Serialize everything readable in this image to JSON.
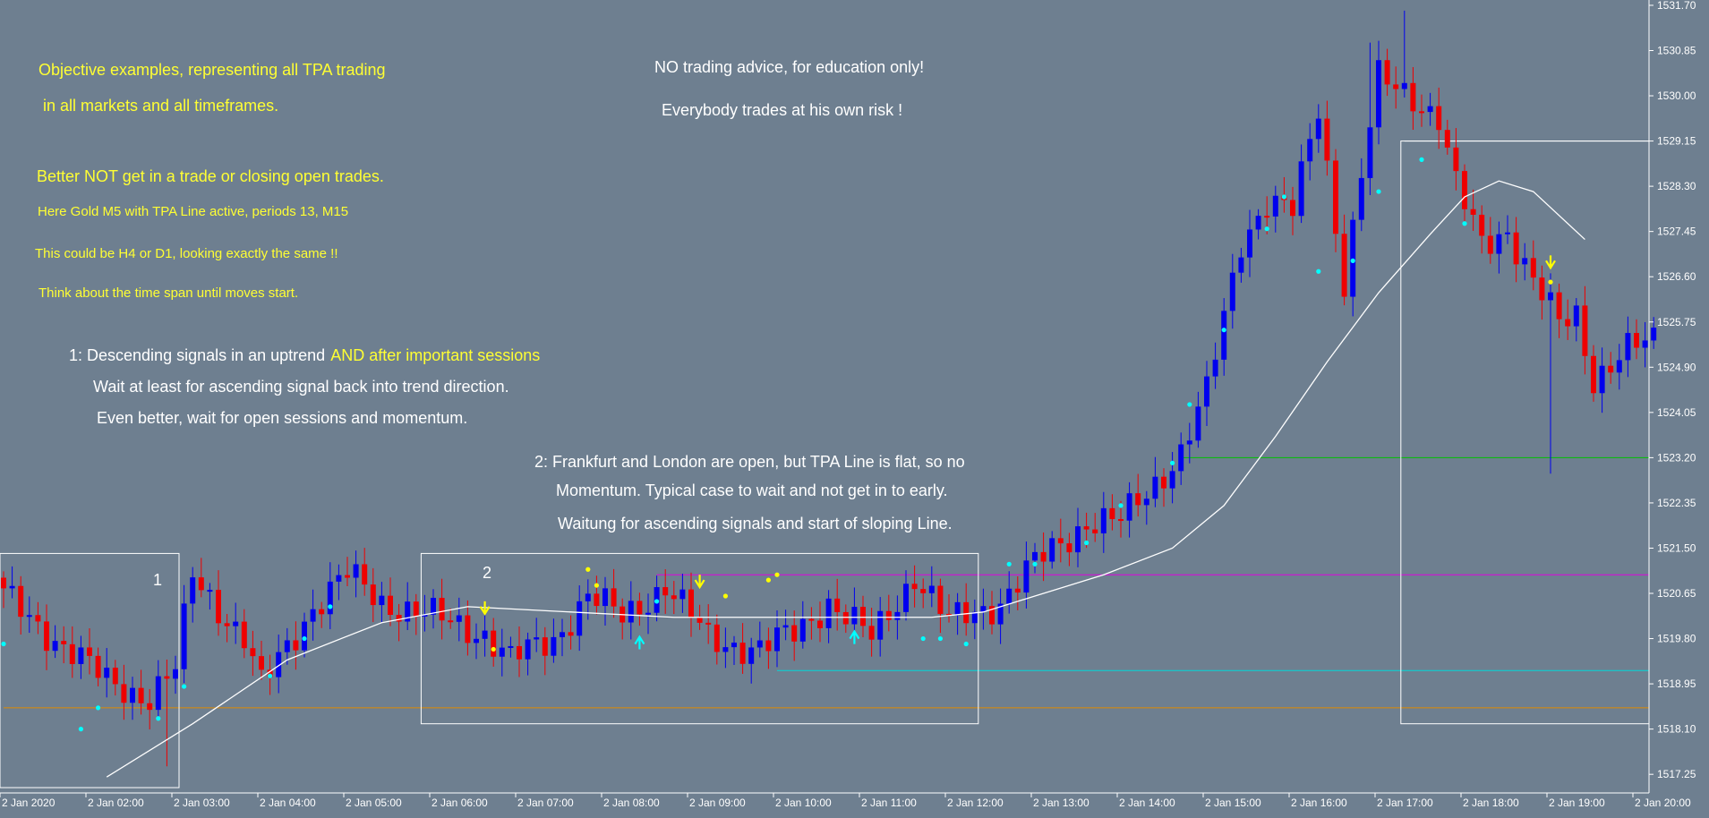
{
  "notes": {
    "yellow_1": "Objective examples, representing all TPA trading",
    "yellow_2": "in all markets and all timeframes.",
    "yellow_3": "Better NOT get in a trade or closing open trades.",
    "yellow_4": "Here Gold M5 with TPA Line active, periods 13, M15",
    "yellow_5": "This could be H4 or D1, looking exactly the same !!",
    "yellow_6": "Think about the time span until moves start.",
    "disclaimer_1": "NO trading advice, for education only!",
    "disclaimer_2": "Everybody trades at his own risk !",
    "case1_line1_white": "1: Descending signals in an uptrend",
    "case1_line1_yellow": "AND after important sessions",
    "case1_line2": "Wait at least for ascending signal back into trend direction.",
    "case1_line3": "Even better, wait for open sessions and momentum.",
    "case2_line1": "2: Frankfurt and London are open, but TPA Line is flat, so no",
    "case2_line2": "Momentum. Typical case to wait and not get in to early.",
    "case2_line3": "Waitung for ascending signals and start of sloping Line.",
    "box1_label": "1",
    "box2_label": "2"
  },
  "colors": {
    "background": "#6e7f90",
    "bull": "#0000ee",
    "bear": "#ee0000",
    "tpa_line": "#ffffff",
    "signal_ascending": "#00ffff",
    "signal_descending": "#ffff00",
    "level_magenta": "#e000e0",
    "level_cyan": "#00d8d8",
    "level_orange": "#e08a00",
    "level_green": "#00c000",
    "note_yellow": "#ffff33",
    "note_white": "#ffffff"
  },
  "chart_data": {
    "type": "candlestick",
    "instrument": "Gold",
    "timeframe": "M5",
    "y_axis": {
      "ylim": [
        1516.9,
        1531.8
      ],
      "ticks": [
        "1517.25",
        "1518.10",
        "1518.95",
        "1519.80",
        "1520.65",
        "1521.50",
        "1522.35",
        "1523.20",
        "1524.05",
        "1524.90",
        "1525.75",
        "1526.60",
        "1527.45",
        "1528.30",
        "1529.15",
        "1530.00",
        "1530.85",
        "1531.70"
      ]
    },
    "x_axis": {
      "ticks": [
        "2 Jan 2020",
        "2 Jan 02:00",
        "2 Jan 03:00",
        "2 Jan 04:00",
        "2 Jan 05:00",
        "2 Jan 06:00",
        "2 Jan 07:00",
        "2 Jan 08:00",
        "2 Jan 09:00",
        "2 Jan 10:00",
        "2 Jan 11:00",
        "2 Jan 12:00",
        "2 Jan 13:00",
        "2 Jan 14:00",
        "2 Jan 15:00",
        "2 Jan 16:00",
        "2 Jan 17:00",
        "2 Jan 18:00",
        "2 Jan 19:00",
        "2 Jan 20:00"
      ]
    },
    "close_anchors": [
      {
        "bar": 0,
        "close": 1520.6
      },
      {
        "bar": 6,
        "close": 1519.8
      },
      {
        "bar": 12,
        "close": 1519.0
      },
      {
        "bar": 17,
        "close": 1518.7
      },
      {
        "bar": 20,
        "close": 1519.2
      },
      {
        "bar": 22,
        "close": 1521.0
      },
      {
        "bar": 28,
        "close": 1519.8
      },
      {
        "bar": 30,
        "close": 1518.9
      },
      {
        "bar": 36,
        "close": 1520.4
      },
      {
        "bar": 40,
        "close": 1521.0
      },
      {
        "bar": 44,
        "close": 1520.5
      },
      {
        "bar": 50,
        "close": 1520.2
      },
      {
        "bar": 56,
        "close": 1519.9
      },
      {
        "bar": 59,
        "close": 1519.4
      },
      {
        "bar": 64,
        "close": 1519.8
      },
      {
        "bar": 68,
        "close": 1520.6
      },
      {
        "bar": 72,
        "close": 1520.2
      },
      {
        "bar": 77,
        "close": 1520.8
      },
      {
        "bar": 82,
        "close": 1519.8
      },
      {
        "bar": 88,
        "close": 1519.6
      },
      {
        "bar": 92,
        "close": 1519.9
      },
      {
        "bar": 96,
        "close": 1520.5
      },
      {
        "bar": 101,
        "close": 1519.8
      },
      {
        "bar": 106,
        "close": 1521.0
      },
      {
        "bar": 110,
        "close": 1520.1
      },
      {
        "bar": 116,
        "close": 1520.5
      },
      {
        "bar": 120,
        "close": 1521.2
      },
      {
        "bar": 126,
        "close": 1522.0
      },
      {
        "bar": 130,
        "close": 1522.0
      },
      {
        "bar": 137,
        "close": 1523.3
      },
      {
        "bar": 140,
        "close": 1524.4
      },
      {
        "bar": 144,
        "close": 1527.3
      },
      {
        "bar": 147,
        "close": 1528.0
      },
      {
        "bar": 150,
        "close": 1527.8
      },
      {
        "bar": 153,
        "close": 1529.8
      },
      {
        "bar": 156,
        "close": 1526.5
      },
      {
        "bar": 158,
        "close": 1528.5
      },
      {
        "bar": 160,
        "close": 1530.3
      },
      {
        "bar": 164,
        "close": 1530.0
      },
      {
        "bar": 167,
        "close": 1529.6
      },
      {
        "bar": 169,
        "close": 1528.3
      },
      {
        "bar": 172,
        "close": 1527.2
      },
      {
        "bar": 175,
        "close": 1527.5
      },
      {
        "bar": 178,
        "close": 1526.5
      },
      {
        "bar": 181,
        "close": 1525.7
      },
      {
        "bar": 183,
        "close": 1525.9
      },
      {
        "bar": 185,
        "close": 1524.7
      },
      {
        "bar": 189,
        "close": 1525.2
      },
      {
        "bar": 192,
        "close": 1525.4
      }
    ],
    "notable_wicks": [
      {
        "bar": 19,
        "low": 1517.4
      },
      {
        "bar": 159,
        "high": 1531.0
      },
      {
        "bar": 180,
        "low": 1522.9
      },
      {
        "bar": 163,
        "high": 1531.6
      }
    ],
    "tpa_line": [
      {
        "bar": 12,
        "value": 1517.2
      },
      {
        "bar": 22,
        "value": 1518.2
      },
      {
        "bar": 33,
        "value": 1519.4
      },
      {
        "bar": 44,
        "value": 1520.1
      },
      {
        "bar": 54,
        "value": 1520.4
      },
      {
        "bar": 66,
        "value": 1520.3
      },
      {
        "bar": 78,
        "value": 1520.2
      },
      {
        "bar": 90,
        "value": 1520.2
      },
      {
        "bar": 100,
        "value": 1520.2
      },
      {
        "bar": 108,
        "value": 1520.2
      },
      {
        "bar": 114,
        "value": 1520.3
      },
      {
        "bar": 120,
        "value": 1520.6
      },
      {
        "bar": 128,
        "value": 1521.0
      },
      {
        "bar": 136,
        "value": 1521.5
      },
      {
        "bar": 142,
        "value": 1522.3
      },
      {
        "bar": 148,
        "value": 1523.6
      },
      {
        "bar": 154,
        "value": 1525.0
      },
      {
        "bar": 160,
        "value": 1526.3
      },
      {
        "bar": 166,
        "value": 1527.4
      },
      {
        "bar": 170,
        "value": 1528.1
      },
      {
        "bar": 174,
        "value": 1528.4
      },
      {
        "bar": 178,
        "value": 1528.2
      },
      {
        "bar": 184,
        "value": 1527.3
      }
    ],
    "levels": [
      {
        "name": "magenta",
        "value": 1521.0,
        "from_bar": 76,
        "color": "#e000e0"
      },
      {
        "name": "cyan",
        "value": 1519.2,
        "from_bar": 90,
        "color": "#00d8d8"
      },
      {
        "name": "orange",
        "value": 1518.5,
        "from_bar": 0,
        "color": "#e08a00"
      },
      {
        "name": "green",
        "value": 1523.2,
        "from_bar": 137,
        "color": "#00c000"
      },
      {
        "name": "white",
        "value": 1529.15,
        "from_bar": 163,
        "color": "#ffffff"
      }
    ],
    "boxes": [
      {
        "label_key": "box1_label",
        "from_bar": 0,
        "to_bar": 20,
        "low": 1517.0,
        "high": 1521.4
      },
      {
        "label_key": "box2_label",
        "from_bar": 49,
        "to_bar": 113,
        "low": 1518.2,
        "high": 1521.4
      },
      {
        "label_key": "",
        "from_bar": 163,
        "to_bar": 195,
        "low": 1518.2,
        "high": 1529.15
      }
    ],
    "signals": [
      {
        "bar": 0,
        "type": "ascending_dot",
        "value": 1519.7
      },
      {
        "bar": 9,
        "type": "ascending_dot",
        "value": 1518.1
      },
      {
        "bar": 11,
        "type": "ascending_dot",
        "value": 1518.5
      },
      {
        "bar": 18,
        "type": "ascending_dot",
        "value": 1518.3
      },
      {
        "bar": 21,
        "type": "ascending_dot",
        "value": 1518.9
      },
      {
        "bar": 31,
        "type": "ascending_dot",
        "value": 1519.1
      },
      {
        "bar": 35,
        "type": "ascending_dot",
        "value": 1519.8
      },
      {
        "bar": 38,
        "type": "ascending_dot",
        "value": 1520.4
      },
      {
        "bar": 56,
        "type": "descending_arrow",
        "value": 1520.3
      },
      {
        "bar": 57,
        "type": "descending_dot",
        "value": 1519.6
      },
      {
        "bar": 68,
        "type": "descending_dot",
        "value": 1521.1
      },
      {
        "bar": 69,
        "type": "descending_dot",
        "value": 1520.8
      },
      {
        "bar": 74,
        "type": "ascending_arrow",
        "value": 1519.8
      },
      {
        "bar": 76,
        "type": "ascending_dot",
        "value": 1520.5
      },
      {
        "bar": 81,
        "type": "descending_arrow",
        "value": 1520.8
      },
      {
        "bar": 84,
        "type": "descending_dot",
        "value": 1520.6
      },
      {
        "bar": 89,
        "type": "descending_dot",
        "value": 1520.9
      },
      {
        "bar": 90,
        "type": "descending_dot",
        "value": 1521.0
      },
      {
        "bar": 99,
        "type": "ascending_arrow",
        "value": 1519.9
      },
      {
        "bar": 107,
        "type": "ascending_dot",
        "value": 1519.8
      },
      {
        "bar": 109,
        "type": "ascending_dot",
        "value": 1519.8
      },
      {
        "bar": 112,
        "type": "ascending_dot",
        "value": 1519.7
      },
      {
        "bar": 117,
        "type": "ascending_dot",
        "value": 1521.2
      },
      {
        "bar": 120,
        "type": "ascending_dot",
        "value": 1521.2
      },
      {
        "bar": 126,
        "type": "ascending_dot",
        "value": 1521.6
      },
      {
        "bar": 130,
        "type": "ascending_dot",
        "value": 1522.3
      },
      {
        "bar": 136,
        "type": "ascending_dot",
        "value": 1523.1
      },
      {
        "bar": 138,
        "type": "ascending_dot",
        "value": 1524.2
      },
      {
        "bar": 142,
        "type": "ascending_dot",
        "value": 1525.6
      },
      {
        "bar": 147,
        "type": "ascending_dot",
        "value": 1527.5
      },
      {
        "bar": 149,
        "type": "ascending_dot",
        "value": 1528.1
      },
      {
        "bar": 153,
        "type": "ascending_dot",
        "value": 1526.7
      },
      {
        "bar": 157,
        "type": "ascending_dot",
        "value": 1526.9
      },
      {
        "bar": 160,
        "type": "ascending_dot",
        "value": 1528.2
      },
      {
        "bar": 165,
        "type": "ascending_dot",
        "value": 1528.8
      },
      {
        "bar": 170,
        "type": "ascending_dot",
        "value": 1527.6
      },
      {
        "bar": 180,
        "type": "descending_arrow",
        "value": 1526.8
      },
      {
        "bar": 180,
        "type": "descending_dot",
        "value": 1526.5
      }
    ]
  }
}
